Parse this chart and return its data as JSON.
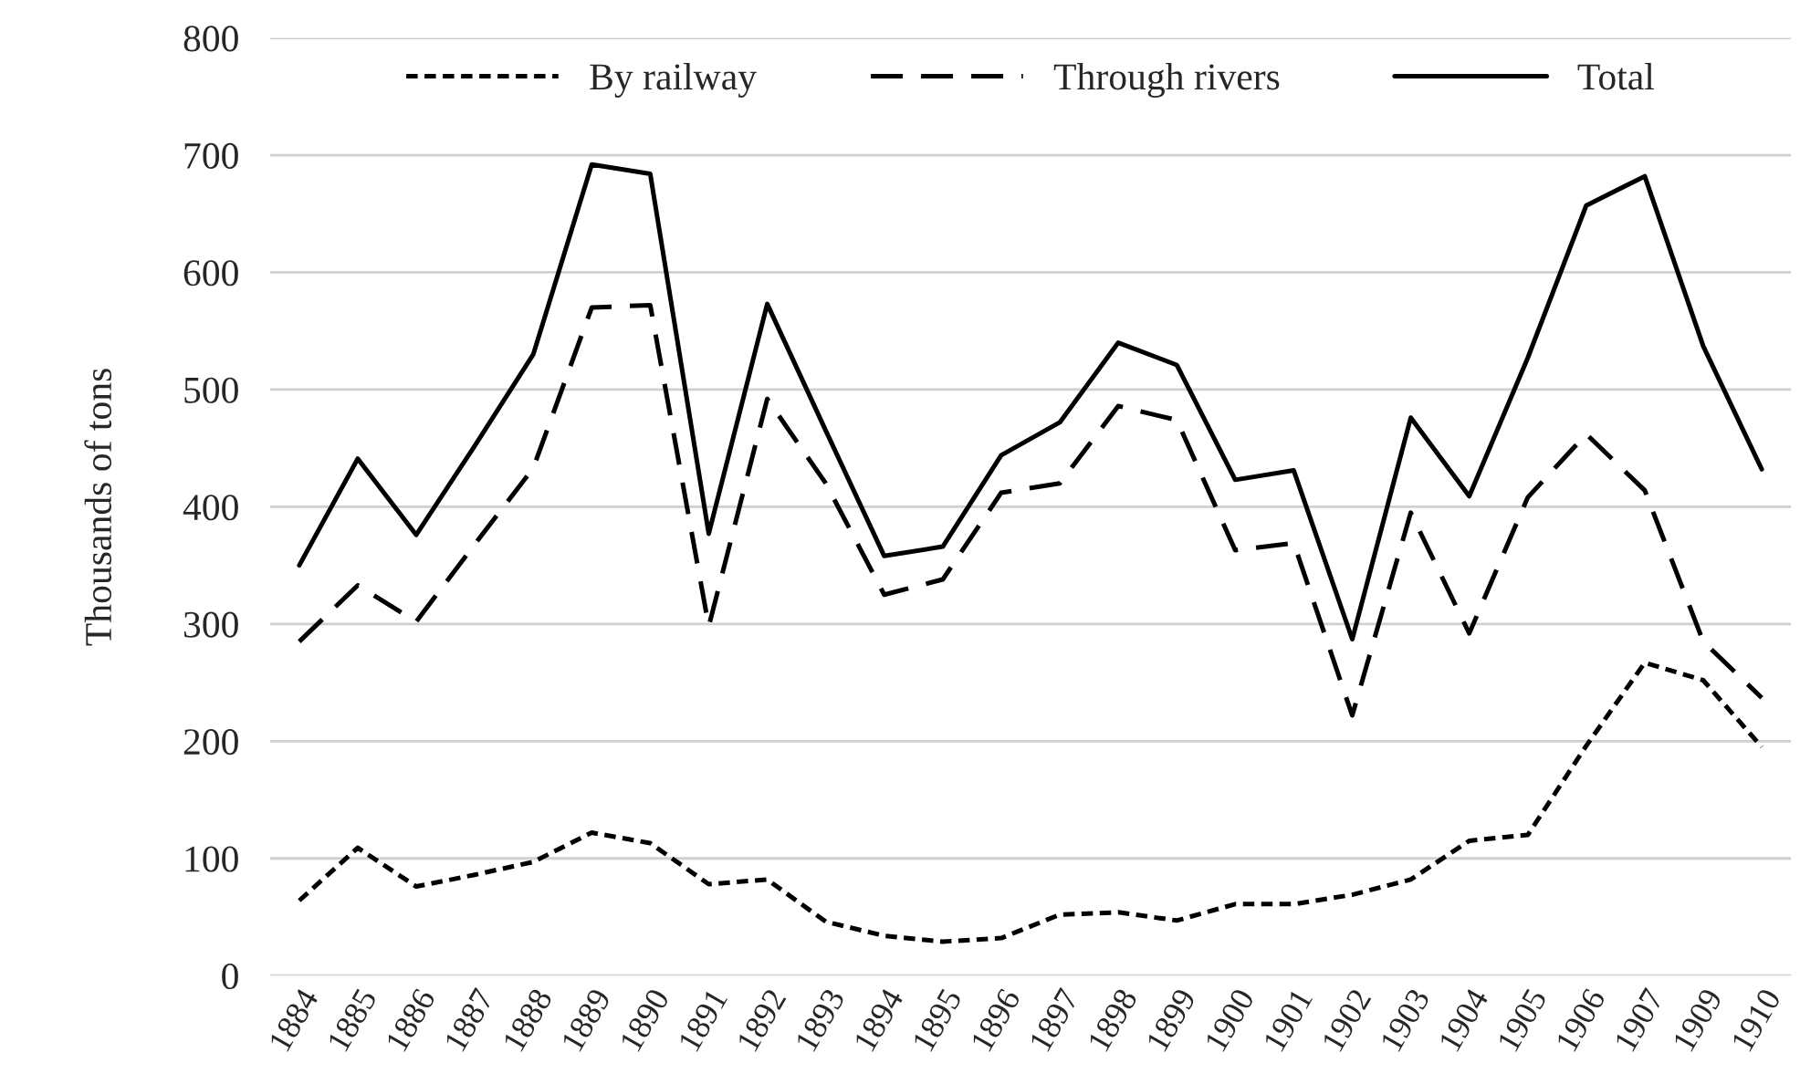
{
  "chart_data": {
    "type": "line",
    "ylabel": "Thousands of tons",
    "categories": [
      "1884",
      "1885",
      "1886",
      "1887",
      "1888",
      "1889",
      "1890",
      "1891",
      "1892",
      "1893",
      "1894",
      "1895",
      "1896",
      "1897",
      "1898",
      "1899",
      "1900",
      "1901",
      "1902",
      "1903",
      "1904",
      "1905",
      "1906",
      "1907",
      "1909",
      "1910"
    ],
    "series": [
      {
        "name": "By railway",
        "color": "#000000",
        "line_style": "dotted",
        "values": [
          64,
          109,
          76,
          86,
          97,
          122,
          113,
          78,
          82,
          46,
          34,
          29,
          32,
          52,
          54,
          47,
          61,
          61,
          69,
          82,
          115,
          120,
          196,
          267,
          252,
          195
        ]
      },
      {
        "name": "Through rivers",
        "color": "#000000",
        "line_style": "dashed",
        "values": [
          285,
          333,
          302,
          368,
          433,
          570,
          572,
          298,
          492,
          420,
          325,
          338,
          412,
          420,
          486,
          474,
          363,
          369,
          222,
          395,
          292,
          408,
          462,
          414,
          285,
          237
        ]
      },
      {
        "name": "Total",
        "color": "#000000",
        "line_style": "solid",
        "values": [
          350,
          441,
          376,
          452,
          530,
          692,
          684,
          377,
          573,
          465,
          358,
          366,
          444,
          472,
          540,
          521,
          423,
          431,
          287,
          476,
          409,
          527,
          657,
          682,
          537,
          432
        ]
      }
    ],
    "ylim": [
      0,
      800
    ],
    "yticks": [
      0,
      100,
      200,
      300,
      400,
      500,
      600,
      700,
      800
    ],
    "grid": "y",
    "legend": "top",
    "marker": "none"
  }
}
